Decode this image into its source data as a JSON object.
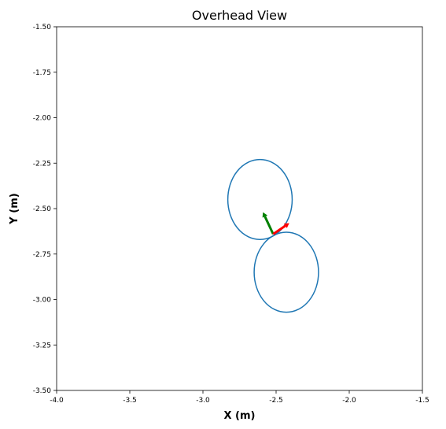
{
  "chart_data": {
    "type": "scatter",
    "title": "Overhead View",
    "xlabel": "X (m)",
    "ylabel": "Y (m)",
    "xlim": [
      -4.0,
      -1.5
    ],
    "ylim": [
      -3.5,
      -1.5
    ],
    "grid": false,
    "x_ticks": [
      "-4.0",
      "-3.5",
      "-3.0",
      "-2.5",
      "-2.0",
      "-1.5"
    ],
    "y_ticks": [
      "-1.50",
      "-1.75",
      "-2.00",
      "-2.25",
      "-2.50",
      "-2.75",
      "-3.00",
      "-3.25",
      "-3.50"
    ],
    "x_tick_values": [
      -4.0,
      -3.5,
      -3.0,
      -2.5,
      -2.0,
      -1.5
    ],
    "y_tick_values": [
      -1.5,
      -1.75,
      -2.0,
      -2.25,
      -2.5,
      -2.75,
      -3.0,
      -3.25,
      -3.5
    ],
    "circles": [
      {
        "cx": -2.61,
        "cy": -2.45,
        "r": 0.22,
        "color": "#1f77b4"
      },
      {
        "cx": -2.43,
        "cy": -2.85,
        "r": 0.22,
        "color": "#1f77b4"
      }
    ],
    "arrows": [
      {
        "x": -2.52,
        "y": -2.64,
        "dx": -0.07,
        "dy": 0.12,
        "color": "#008000"
      },
      {
        "x": -2.52,
        "y": -2.64,
        "dx": 0.11,
        "dy": 0.06,
        "color": "#ff0000"
      }
    ]
  }
}
